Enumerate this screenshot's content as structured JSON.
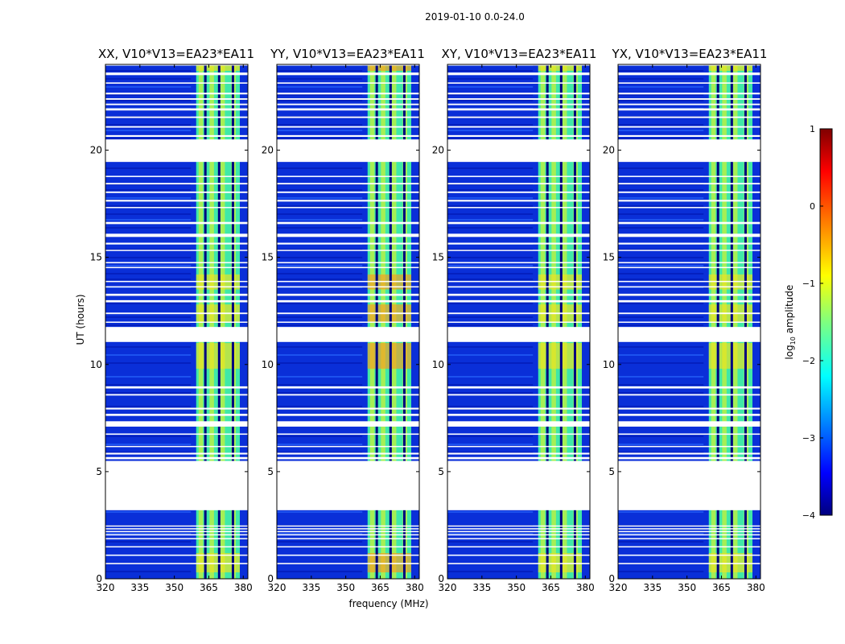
{
  "figure_title": "2019-01-10 0.0-24.0",
  "colorbar": {
    "label_prefix": "log",
    "label_sub": "10",
    "label_suffix": " amplitude",
    "ticks": [
      "1",
      "0",
      "−1",
      "−2",
      "−3",
      "−4"
    ],
    "range": [
      -4,
      1
    ]
  },
  "chart_data": [
    {
      "type": "heatmap",
      "title": "XX, V10*V13=EA23*EA11",
      "ylabel": "UT (hours)",
      "xlabel": "",
      "xlim": [
        320,
        382
      ],
      "ylim": [
        0,
        24
      ],
      "xticks": [
        "320",
        "335",
        "350",
        "365",
        "380"
      ],
      "yticks": [
        "0",
        "5",
        "10",
        "15",
        "20"
      ],
      "show_y_ticklabels": true
    },
    {
      "type": "heatmap",
      "title": "YY, V10*V13=EA23*EA11",
      "xlabel": "frequency (MHz)",
      "xlim": [
        320,
        382
      ],
      "ylim": [
        0,
        24
      ],
      "xticks": [
        "320",
        "335",
        "350",
        "365",
        "380"
      ],
      "yticks": [
        "0",
        "5",
        "10",
        "15",
        "20"
      ],
      "show_y_ticklabels": true
    },
    {
      "type": "heatmap",
      "title": "XY, V10*V13=EA23*EA11",
      "xlabel": "",
      "xlim": [
        320,
        382
      ],
      "ylim": [
        0,
        24
      ],
      "xticks": [
        "320",
        "335",
        "350",
        "365",
        "380"
      ],
      "yticks": [
        "0",
        "5",
        "10",
        "15",
        "20"
      ],
      "show_y_ticklabels": true
    },
    {
      "type": "heatmap",
      "title": "YX, V10*V13=EA23*EA11",
      "xlabel": "",
      "xlim": [
        320,
        382
      ],
      "ylim": [
        0,
        24
      ],
      "xticks": [
        "320",
        "335",
        "350",
        "365",
        "380"
      ],
      "yticks": [
        "0",
        "5",
        "10",
        "15",
        "20"
      ],
      "show_y_ticklabels": true
    }
  ],
  "waterfall": {
    "freq_bright_band_mhz": [
      359.5,
      378.5
    ],
    "freq_band_gaps_mhz": [
      363.5,
      369.5,
      375.5
    ],
    "gap_hours": [
      [
        0.68,
        0.74
      ],
      [
        1.08,
        1.13
      ],
      [
        1.48,
        1.52
      ],
      [
        1.86,
        1.9
      ],
      [
        2.03,
        2.08
      ],
      [
        2.18,
        2.23
      ],
      [
        2.32,
        2.36
      ],
      [
        2.44,
        2.49
      ],
      [
        3.2,
        5.5
      ],
      [
        5.58,
        5.68
      ],
      [
        5.8,
        5.88
      ],
      [
        6.15,
        6.2
      ],
      [
        6.72,
        6.78
      ],
      [
        7.1,
        7.35
      ],
      [
        7.6,
        7.7
      ],
      [
        7.9,
        7.98
      ],
      [
        8.55,
        8.62
      ],
      [
        8.88,
        8.98
      ],
      [
        11.05,
        11.75
      ],
      [
        11.95,
        12.0
      ],
      [
        12.35,
        12.42
      ],
      [
        12.9,
        13.0
      ],
      [
        13.2,
        13.3
      ],
      [
        13.6,
        13.65
      ],
      [
        13.85,
        13.9
      ],
      [
        14.5,
        14.55
      ],
      [
        14.72,
        14.78
      ],
      [
        15.3,
        15.35
      ],
      [
        15.6,
        15.68
      ],
      [
        15.95,
        16.1
      ],
      [
        16.55,
        16.65
      ],
      [
        17.3,
        17.35
      ],
      [
        17.6,
        17.68
      ],
      [
        18.0,
        18.07
      ],
      [
        18.4,
        18.47
      ],
      [
        18.75,
        18.8
      ],
      [
        19.45,
        20.5
      ],
      [
        20.62,
        20.7
      ],
      [
        21.05,
        21.12
      ],
      [
        21.5,
        21.57
      ],
      [
        21.85,
        21.95
      ],
      [
        22.1,
        22.17
      ],
      [
        22.35,
        22.42
      ],
      [
        22.6,
        22.68
      ],
      [
        23.1,
        23.16
      ],
      [
        23.5,
        23.62
      ],
      [
        24.0,
        24.1
      ]
    ],
    "hot_hours": [
      [
        0.3,
        1.2
      ],
      [
        9.8,
        11.0
      ],
      [
        12.0,
        12.8
      ],
      [
        13.5,
        14.2
      ],
      [
        23.7,
        24.0
      ]
    ]
  }
}
